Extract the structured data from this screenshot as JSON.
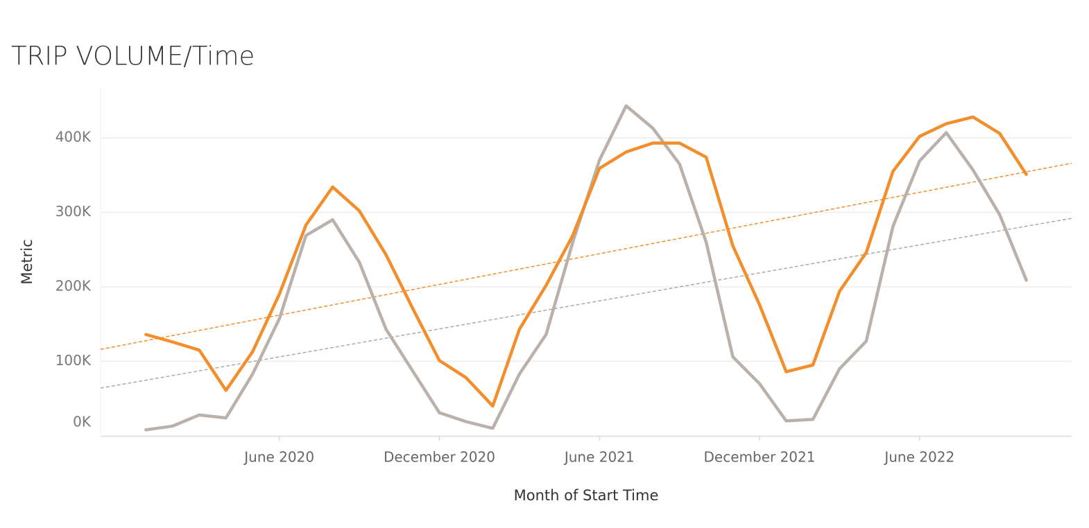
{
  "chart_data": {
    "type": "line",
    "title": "TRIP VOLUME/Time",
    "x_label": "Month of Start Time",
    "y_label": "Metric",
    "x": [
      "2020-01-01",
      "2020-02-01",
      "2020-03-01",
      "2020-04-01",
      "2020-05-01",
      "2020-06-01",
      "2020-07-01",
      "2020-08-01",
      "2020-09-01",
      "2020-10-01",
      "2020-11-01",
      "2020-12-01",
      "2021-01-01",
      "2021-02-01",
      "2021-03-01",
      "2021-04-01",
      "2021-05-01",
      "2021-06-01",
      "2021-07-01",
      "2021-08-01",
      "2021-09-01",
      "2021-10-01",
      "2021-11-01",
      "2021-12-01",
      "2022-01-01",
      "2022-02-01",
      "2022-03-01",
      "2022-04-01",
      "2022-05-01",
      "2022-06-01",
      "2022-07-01",
      "2022-08-01",
      "2022-09-01",
      "2022-10-01"
    ],
    "series": [
      {
        "color": "#f28e2b",
        "values": [
          136000,
          126000,
          115000,
          61000,
          113000,
          190000,
          283000,
          334000,
          302000,
          243000,
          171000,
          101000,
          78000,
          40000,
          143000,
          202000,
          269000,
          359000,
          381000,
          393000,
          393000,
          374000,
          255000,
          176000,
          86000,
          95000,
          194000,
          246000,
          355000,
          402000,
          419000,
          428000,
          406000,
          351000
        ]
      },
      {
        "color": "#bab0ac",
        "values": [
          8000,
          13000,
          28000,
          24000,
          83000,
          157000,
          269000,
          290000,
          233000,
          143000,
          87000,
          31000,
          19000,
          10000,
          83000,
          136000,
          260000,
          370000,
          443000,
          413000,
          365000,
          260000,
          106000,
          70000,
          20000,
          22000,
          90000,
          127000,
          281000,
          369000,
          407000,
          357000,
          297000,
          209000
        ]
      }
    ],
    "trendlines": [
      {
        "color": "#f28e2b",
        "values": [
          116000,
          366000
        ]
      },
      {
        "color": "#aaaaaa",
        "values": [
          64000,
          292000
        ]
      }
    ],
    "xlim": [
      "2019-11-10",
      "2022-11-22"
    ],
    "xticks": [
      {
        "value": "2020-06-01",
        "label": "June 2020"
      },
      {
        "value": "2020-12-01",
        "label": "December 2020"
      },
      {
        "value": "2021-06-01",
        "label": "June 2021"
      },
      {
        "value": "2021-12-01",
        "label": "December 2021"
      },
      {
        "value": "2022-06-01",
        "label": "June 2022"
      }
    ],
    "ylim": [
      -1000,
      466000
    ],
    "yticks": [
      {
        "value": 0,
        "label": "0K"
      },
      {
        "value": 100000,
        "label": "100K"
      },
      {
        "value": 200000,
        "label": "200K"
      },
      {
        "value": 300000,
        "label": "300K"
      },
      {
        "value": 400000,
        "label": "400K"
      }
    ],
    "grid": true
  }
}
